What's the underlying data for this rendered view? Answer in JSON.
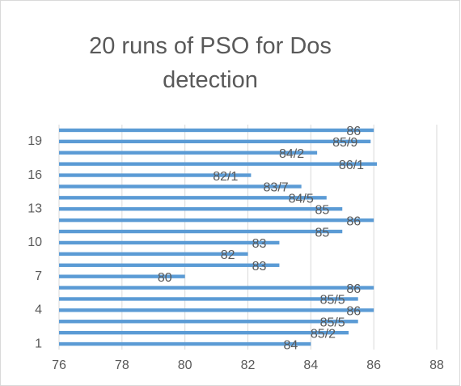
{
  "chart_data": {
    "type": "hbar",
    "title": "20 runs of PSO for Dos detection",
    "categories": [
      "1",
      null,
      null,
      "4",
      null,
      null,
      "7",
      null,
      null,
      "10",
      null,
      null,
      "13",
      null,
      null,
      "16",
      null,
      null,
      "19",
      null
    ],
    "values": [
      84,
      85.2,
      85.5,
      86,
      85.5,
      86,
      80,
      83,
      82,
      83,
      85,
      86,
      85,
      84.5,
      83.7,
      82.1,
      86.1,
      84.2,
      85.9,
      86
    ],
    "value_labels": [
      "84",
      "85/2",
      "85/5",
      "86",
      "85/5",
      "86",
      "80",
      "83",
      "82",
      "83",
      "85",
      "86",
      "85",
      "84/5",
      "83/7",
      "82/1",
      "86/1",
      "84/2",
      "85/9",
      "86"
    ],
    "color": "#5b9bd5",
    "xlim": [
      76,
      88
    ],
    "xticks": [
      76,
      78,
      80,
      82,
      84,
      86,
      88
    ],
    "grid": true
  }
}
